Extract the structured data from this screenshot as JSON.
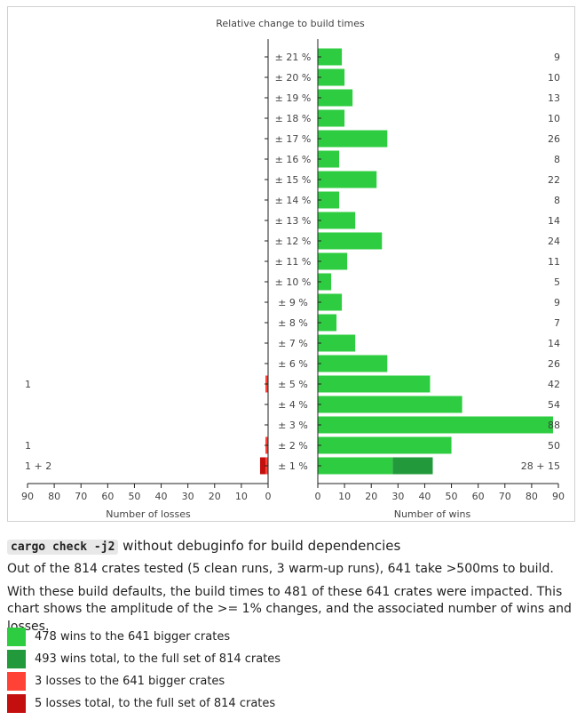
{
  "chart_data": {
    "type": "bar",
    "title": "Relative change to build times",
    "left_xlabel": "Number of losses",
    "right_xlabel": "Number of wins",
    "categories": [
      "± 21 %",
      "± 20 %",
      "± 19 %",
      "± 18 %",
      "± 17 %",
      "± 16 %",
      "± 15 %",
      "± 14 %",
      "± 13 %",
      "± 12 %",
      "± 11 %",
      "± 10 %",
      "± 9 %",
      "± 8 %",
      "± 7 %",
      "± 6 %",
      "± 5 %",
      "± 4 %",
      "± 3 %",
      "± 2 %",
      "± 1 %"
    ],
    "wins_big": [
      9,
      10,
      13,
      10,
      26,
      8,
      22,
      8,
      14,
      24,
      11,
      5,
      9,
      7,
      14,
      26,
      42,
      54,
      88,
      50,
      28
    ],
    "wins_extra": [
      0,
      0,
      0,
      0,
      0,
      0,
      0,
      0,
      0,
      0,
      0,
      0,
      0,
      0,
      0,
      0,
      0,
      0,
      0,
      0,
      15
    ],
    "win_labels": [
      "9",
      "10",
      "13",
      "10",
      "26",
      "8",
      "22",
      "8",
      "14",
      "24",
      "11",
      "5",
      "9",
      "7",
      "14",
      "26",
      "42",
      "54",
      "88",
      "50",
      "28 + 15"
    ],
    "losses_big": [
      0,
      0,
      0,
      0,
      0,
      0,
      0,
      0,
      0,
      0,
      0,
      0,
      0,
      0,
      0,
      0,
      1,
      0,
      0,
      1,
      1
    ],
    "losses_extra": [
      0,
      0,
      0,
      0,
      0,
      0,
      0,
      0,
      0,
      0,
      0,
      0,
      0,
      0,
      0,
      0,
      0,
      0,
      0,
      0,
      2
    ],
    "loss_labels": [
      "",
      "",
      "",
      "",
      "",
      "",
      "",
      "",
      "",
      "",
      "",
      "",
      "",
      "",
      "",
      "",
      "1",
      "",
      "",
      "1",
      "1 + 2"
    ],
    "xlim": [
      0,
      90
    ],
    "ticks": [
      90,
      80,
      70,
      60,
      50,
      40,
      30,
      20,
      10,
      0
    ],
    "right_ticks": [
      0,
      10,
      20,
      30,
      40,
      50,
      60,
      70,
      80,
      90
    ]
  },
  "colors": {
    "win_big": "#2ecc40",
    "win_extra": "#22993a",
    "loss_big": "#ff4136",
    "loss_extra": "#c40f0f",
    "axis": "#222222"
  },
  "caption": {
    "code": "cargo check -j2",
    "title_rest": " without debuginfo for build dependencies",
    "line1": "Out of the 814 crates tested (5 clean runs, 3 warm-up runs), 641 take >500ms to build.",
    "line2": "With these build defaults, the build times to 481 of these 641 crates were impacted. This chart shows the amplitude of the >= 1% changes, and the associated number of wins and losses."
  },
  "legend": [
    {
      "label": "478 wins to the 641 bigger crates",
      "color": "#2ecc40"
    },
    {
      "label": "493 wins total, to the full set of 814 crates",
      "color": "#22993a"
    },
    {
      "label": "3 losses to the 641 bigger crates",
      "color": "#ff4136"
    },
    {
      "label": "5 losses total, to the full set of 814 crates",
      "color": "#c40f0f"
    }
  ]
}
